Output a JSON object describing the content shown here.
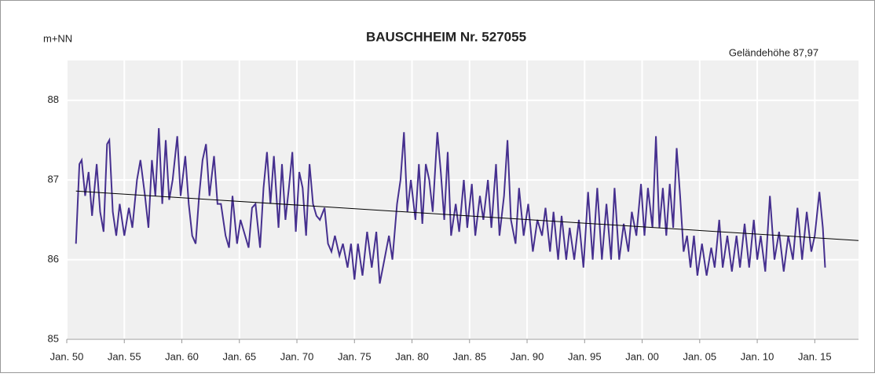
{
  "chart_data": {
    "type": "line",
    "title": "BAUSCHHEIM  Nr. 527055",
    "y_label": "m+NN",
    "annotation": "Geländehöhe 87,97",
    "annotation_color": "#3a9a3a",
    "xlim": [
      1950,
      2018.8
    ],
    "ylim": [
      85,
      88.5
    ],
    "yticks": [
      85,
      86,
      87,
      88
    ],
    "xticks": [
      {
        "value": 1950,
        "label": "Jan. 50"
      },
      {
        "value": 1955,
        "label": "Jan. 55"
      },
      {
        "value": 1960,
        "label": "Jan. 60"
      },
      {
        "value": 1965,
        "label": "Jan. 65"
      },
      {
        "value": 1970,
        "label": "Jan. 70"
      },
      {
        "value": 1975,
        "label": "Jan. 75"
      },
      {
        "value": 1980,
        "label": "Jan. 80"
      },
      {
        "value": 1985,
        "label": "Jan. 85"
      },
      {
        "value": 1990,
        "label": "Jan. 90"
      },
      {
        "value": 1995,
        "label": "Jan. 95"
      },
      {
        "value": 2000,
        "label": "Jan. 00"
      },
      {
        "value": 2005,
        "label": "Jan. 05"
      },
      {
        "value": 2010,
        "label": "Jan. 10"
      },
      {
        "value": 2015,
        "label": "Jan. 15"
      }
    ],
    "grid": true,
    "series": [
      {
        "color": "#46308f",
        "x": [
          1950.8,
          1951.1,
          1951.3,
          1951.6,
          1951.9,
          1952.2,
          1952.6,
          1952.9,
          1953.2,
          1953.5,
          1953.7,
          1954.0,
          1954.3,
          1954.6,
          1955.0,
          1955.4,
          1955.7,
          1956.1,
          1956.4,
          1956.8,
          1957.1,
          1957.4,
          1957.7,
          1958.0,
          1958.3,
          1958.6,
          1958.9,
          1959.2,
          1959.6,
          1959.9,
          1960.3,
          1960.6,
          1960.9,
          1961.2,
          1961.5,
          1961.8,
          1962.1,
          1962.4,
          1962.8,
          1963.1,
          1963.4,
          1963.8,
          1964.1,
          1964.4,
          1964.8,
          1965.1,
          1965.5,
          1965.8,
          1966.1,
          1966.4,
          1966.8,
          1967.1,
          1967.4,
          1967.7,
          1968.0,
          1968.4,
          1968.7,
          1969.0,
          1969.3,
          1969.6,
          1969.9,
          1970.2,
          1970.5,
          1970.8,
          1971.1,
          1971.4,
          1971.7,
          1972.0,
          1972.4,
          1972.7,
          1973.0,
          1973.3,
          1973.7,
          1974.0,
          1974.4,
          1974.7,
          1975.0,
          1975.3,
          1975.7,
          1976.1,
          1976.5,
          1976.9,
          1977.2,
          1977.6,
          1978.0,
          1978.3,
          1978.7,
          1979.0,
          1979.3,
          1979.6,
          1979.9,
          1980.3,
          1980.6,
          1980.9,
          1981.2,
          1981.5,
          1981.8,
          1982.2,
          1982.5,
          1982.8,
          1983.1,
          1983.4,
          1983.8,
          1984.1,
          1984.5,
          1984.8,
          1985.2,
          1985.5,
          1985.9,
          1986.2,
          1986.6,
          1986.9,
          1987.3,
          1987.6,
          1988.0,
          1988.3,
          1988.6,
          1989.0,
          1989.3,
          1989.7,
          1990.1,
          1990.5,
          1990.9,
          1991.3,
          1991.6,
          1992.0,
          1992.3,
          1992.7,
          1993.0,
          1993.4,
          1993.7,
          1994.1,
          1994.5,
          1994.9,
          1995.3,
          1995.7,
          1996.1,
          1996.5,
          1996.9,
          1997.3,
          1997.6,
          1998.0,
          1998.4,
          1998.8,
          1999.1,
          1999.5,
          1999.9,
          2000.2,
          2000.5,
          2000.9,
          2001.2,
          2001.5,
          2001.8,
          2002.1,
          2002.4,
          2002.7,
          2003.0,
          2003.3,
          2003.6,
          2003.9,
          2004.2,
          2004.5,
          2004.8,
          2005.2,
          2005.6,
          2006.0,
          2006.3,
          2006.7,
          2007.0,
          2007.4,
          2007.8,
          2008.2,
          2008.5,
          2008.9,
          2009.3,
          2009.7,
          2010.0,
          2010.3,
          2010.7,
          2011.1,
          2011.5,
          2011.9,
          2012.3,
          2012.7,
          2013.1,
          2013.5,
          2013.9,
          2014.3,
          2014.7,
          2015.0,
          2015.4,
          2015.7,
          2015.9
        ],
        "values": [
          86.2,
          87.2,
          87.25,
          86.8,
          87.1,
          86.55,
          87.2,
          86.6,
          86.35,
          87.45,
          87.5,
          86.6,
          86.3,
          86.7,
          86.3,
          86.65,
          86.4,
          87.0,
          87.25,
          86.8,
          86.4,
          87.25,
          86.8,
          87.65,
          86.7,
          87.5,
          86.75,
          87.0,
          87.55,
          86.8,
          87.3,
          86.7,
          86.3,
          86.2,
          86.8,
          87.25,
          87.45,
          86.8,
          87.3,
          86.7,
          86.7,
          86.3,
          86.15,
          86.8,
          86.2,
          86.5,
          86.3,
          86.15,
          86.65,
          86.7,
          86.15,
          86.9,
          87.35,
          86.7,
          87.3,
          86.4,
          87.2,
          86.5,
          86.9,
          87.35,
          86.35,
          87.1,
          86.9,
          86.3,
          87.2,
          86.7,
          86.55,
          86.5,
          86.65,
          86.2,
          86.1,
          86.3,
          86.05,
          86.2,
          85.9,
          86.2,
          85.75,
          86.2,
          85.8,
          86.35,
          85.9,
          86.35,
          85.7,
          86.0,
          86.3,
          86.0,
          86.7,
          87.0,
          87.6,
          86.6,
          87.0,
          86.5,
          87.2,
          86.45,
          87.2,
          87.0,
          86.6,
          87.6,
          87.1,
          86.5,
          87.35,
          86.3,
          86.7,
          86.35,
          87.0,
          86.4,
          86.95,
          86.3,
          86.8,
          86.5,
          87.0,
          86.4,
          87.2,
          86.3,
          86.8,
          87.5,
          86.5,
          86.2,
          86.9,
          86.3,
          86.7,
          86.1,
          86.5,
          86.3,
          86.65,
          86.1,
          86.6,
          86.0,
          86.55,
          86.0,
          86.4,
          86.0,
          86.5,
          85.9,
          86.85,
          86.0,
          86.9,
          86.0,
          86.7,
          86.0,
          86.9,
          86.0,
          86.45,
          86.1,
          86.6,
          86.3,
          86.95,
          86.3,
          86.9,
          86.4,
          87.55,
          86.4,
          86.9,
          86.3,
          86.95,
          86.4,
          87.4,
          86.8,
          86.1,
          86.3,
          85.9,
          86.3,
          85.8,
          86.2,
          85.8,
          86.15,
          85.9,
          86.5,
          85.9,
          86.3,
          85.85,
          86.3,
          85.9,
          86.45,
          85.9,
          86.5,
          86.0,
          86.3,
          85.85,
          86.8,
          86.0,
          86.35,
          85.85,
          86.3,
          86.0,
          86.65,
          86.0,
          86.6,
          86.1,
          86.3,
          86.85,
          86.4,
          85.9
        ]
      },
      {
        "color": "#000000",
        "x": [
          1950.8,
          2018.8
        ],
        "values": [
          86.86,
          86.24
        ]
      }
    ]
  }
}
